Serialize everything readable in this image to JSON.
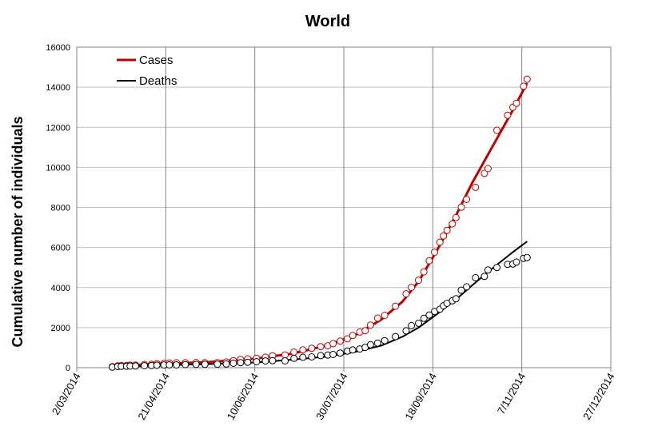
{
  "chart_data": {
    "type": "scatter",
    "title": "World",
    "xlabel": "",
    "ylabel": "Cumulative number of individuals",
    "x_ticks": [
      "2/03/2014",
      "21/04/2014",
      "10/06/2014",
      "30/07/2014",
      "18/09/2014",
      "7/11/2014",
      "27/12/2014"
    ],
    "xlim": [
      "2014-03-02",
      "2014-12-27"
    ],
    "ylim": [
      0,
      16000
    ],
    "y_ticks": [
      0,
      2000,
      4000,
      6000,
      8000,
      10000,
      12000,
      14000,
      16000
    ],
    "grid": {
      "x": true,
      "y": true
    },
    "legend_position": "top-left",
    "series": [
      {
        "name": "Cases",
        "color": "#c00000",
        "observed": [
          [
            "2014-03-22",
            49
          ],
          [
            "2014-03-25",
            86
          ],
          [
            "2014-03-27",
            103
          ],
          [
            "2014-03-30",
            112
          ],
          [
            "2014-04-01",
            122
          ],
          [
            "2014-04-04",
            127
          ],
          [
            "2014-04-09",
            158
          ],
          [
            "2014-04-13",
            168
          ],
          [
            "2014-04-16",
            197
          ],
          [
            "2014-04-20",
            208
          ],
          [
            "2014-04-23",
            234
          ],
          [
            "2014-04-27",
            242
          ],
          [
            "2014-05-02",
            248
          ],
          [
            "2014-05-08",
            260
          ],
          [
            "2014-05-13",
            248
          ],
          [
            "2014-05-20",
            253
          ],
          [
            "2014-05-25",
            285
          ],
          [
            "2014-05-29",
            350
          ],
          [
            "2014-06-02",
            410
          ],
          [
            "2014-06-06",
            440
          ],
          [
            "2014-06-11",
            466
          ],
          [
            "2014-06-16",
            524
          ],
          [
            "2014-06-20",
            595
          ],
          [
            "2014-06-27",
            635
          ],
          [
            "2014-07-02",
            780
          ],
          [
            "2014-07-07",
            888
          ],
          [
            "2014-07-12",
            964
          ],
          [
            "2014-07-17",
            1048
          ],
          [
            "2014-07-21",
            1093
          ],
          [
            "2014-07-24",
            1201
          ],
          [
            "2014-07-28",
            1323
          ],
          [
            "2014-08-01",
            1440
          ],
          [
            "2014-08-04",
            1603
          ],
          [
            "2014-08-08",
            1779
          ],
          [
            "2014-08-11",
            1848
          ],
          [
            "2014-08-14",
            2127
          ],
          [
            "2014-08-18",
            2473
          ],
          [
            "2014-08-22",
            2615
          ],
          [
            "2014-08-28",
            3069
          ],
          [
            "2014-09-03",
            3685
          ],
          [
            "2014-09-06",
            4007
          ],
          [
            "2014-09-10",
            4366
          ],
          [
            "2014-09-13",
            4784
          ],
          [
            "2014-09-16",
            5335
          ],
          [
            "2014-09-19",
            5762
          ],
          [
            "2014-09-22",
            6263
          ],
          [
            "2014-09-24",
            6574
          ],
          [
            "2014-09-26",
            6853
          ],
          [
            "2014-09-29",
            7178
          ],
          [
            "2014-10-01",
            7492
          ],
          [
            "2014-10-04",
            8011
          ],
          [
            "2014-10-07",
            8399
          ],
          [
            "2014-10-12",
            9000
          ],
          [
            "2014-10-17",
            9700
          ],
          [
            "2014-10-19",
            9936
          ],
          [
            "2014-10-24",
            11850
          ],
          [
            "2014-10-30",
            12600
          ],
          [
            "2014-11-02",
            13000
          ],
          [
            "2014-11-04",
            13200
          ],
          [
            "2014-11-08",
            14050
          ],
          [
            "2014-11-10",
            14400
          ]
        ],
        "fit": [
          [
            "2014-03-22",
            60
          ],
          [
            "2014-04-15",
            180
          ],
          [
            "2014-05-15",
            280
          ],
          [
            "2014-06-10",
            450
          ],
          [
            "2014-07-01",
            700
          ],
          [
            "2014-07-20",
            1100
          ],
          [
            "2014-08-05",
            1600
          ],
          [
            "2014-08-20",
            2400
          ],
          [
            "2014-09-01",
            3300
          ],
          [
            "2014-09-10",
            4300
          ],
          [
            "2014-09-20",
            5800
          ],
          [
            "2014-10-01",
            7600
          ],
          [
            "2014-10-10",
            9200
          ],
          [
            "2014-10-20",
            10800
          ],
          [
            "2014-11-01",
            12700
          ],
          [
            "2014-11-10",
            14200
          ]
        ]
      },
      {
        "name": "Deaths",
        "color": "#000000",
        "observed": [
          [
            "2014-03-22",
            29
          ],
          [
            "2014-03-25",
            59
          ],
          [
            "2014-03-27",
            66
          ],
          [
            "2014-03-30",
            70
          ],
          [
            "2014-04-01",
            80
          ],
          [
            "2014-04-04",
            83
          ],
          [
            "2014-04-09",
            101
          ],
          [
            "2014-04-13",
            108
          ],
          [
            "2014-04-16",
            122
          ],
          [
            "2014-04-20",
            136
          ],
          [
            "2014-04-23",
            138
          ],
          [
            "2014-04-27",
            140
          ],
          [
            "2014-05-02",
            157
          ],
          [
            "2014-05-08",
            165
          ],
          [
            "2014-05-13",
            168
          ],
          [
            "2014-05-20",
            175
          ],
          [
            "2014-05-25",
            185
          ],
          [
            "2014-05-29",
            220
          ],
          [
            "2014-06-02",
            250
          ],
          [
            "2014-06-06",
            270
          ],
          [
            "2014-06-11",
            300
          ],
          [
            "2014-06-16",
            337
          ],
          [
            "2014-06-20",
            350
          ],
          [
            "2014-06-27",
            340
          ],
          [
            "2014-07-02",
            467
          ],
          [
            "2014-07-07",
            518
          ],
          [
            "2014-07-12",
            539
          ],
          [
            "2014-07-17",
            603
          ],
          [
            "2014-07-21",
            632
          ],
          [
            "2014-07-24",
            660
          ],
          [
            "2014-07-28",
            729
          ],
          [
            "2014-08-01",
            826
          ],
          [
            "2014-08-04",
            887
          ],
          [
            "2014-08-08",
            932
          ],
          [
            "2014-08-11",
            1013
          ],
          [
            "2014-08-14",
            1145
          ],
          [
            "2014-08-18",
            1229
          ],
          [
            "2014-08-22",
            1350
          ],
          [
            "2014-08-28",
            1552
          ],
          [
            "2014-09-03",
            1841
          ],
          [
            "2014-09-06",
            2097
          ],
          [
            "2014-09-10",
            2218
          ],
          [
            "2014-09-13",
            2461
          ],
          [
            "2014-09-16",
            2630
          ],
          [
            "2014-09-19",
            2803
          ],
          [
            "2014-09-22",
            2917
          ],
          [
            "2014-09-24",
            3091
          ],
          [
            "2014-09-26",
            3212
          ],
          [
            "2014-09-29",
            3338
          ],
          [
            "2014-10-01",
            3439
          ],
          [
            "2014-10-04",
            3865
          ],
          [
            "2014-10-07",
            4033
          ],
          [
            "2014-10-12",
            4493
          ],
          [
            "2014-10-17",
            4555
          ],
          [
            "2014-10-19",
            4877
          ],
          [
            "2014-10-24",
            5000
          ],
          [
            "2014-10-30",
            5160
          ],
          [
            "2014-11-02",
            5177
          ],
          [
            "2014-11-04",
            5270
          ],
          [
            "2014-11-08",
            5459
          ],
          [
            "2014-11-10",
            5500
          ]
        ],
        "fit": [
          [
            "2014-03-22",
            30
          ],
          [
            "2014-04-15",
            100
          ],
          [
            "2014-05-15",
            180
          ],
          [
            "2014-06-10",
            260
          ],
          [
            "2014-07-01",
            400
          ],
          [
            "2014-07-20",
            550
          ],
          [
            "2014-08-05",
            780
          ],
          [
            "2014-08-20",
            1100
          ],
          [
            "2014-09-01",
            1550
          ],
          [
            "2014-09-10",
            2000
          ],
          [
            "2014-09-20",
            2650
          ],
          [
            "2014-10-01",
            3400
          ],
          [
            "2014-10-10",
            4100
          ],
          [
            "2014-10-20",
            4850
          ],
          [
            "2014-11-01",
            5700
          ],
          [
            "2014-11-10",
            6300
          ]
        ]
      }
    ]
  }
}
